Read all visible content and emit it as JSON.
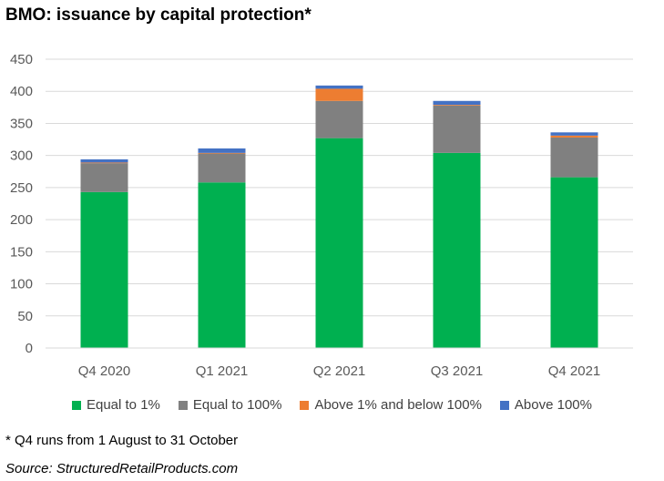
{
  "title": "BMO: issuance by capital protection*",
  "footnote": "* Q4 runs from 1 August to 31 October",
  "source": "Source: StructuredRetailProducts.com",
  "chart_data": {
    "type": "bar",
    "stacked": true,
    "categories": [
      "Q4 2020",
      "Q1 2021",
      "Q2 2021",
      "Q3 2021",
      "Q4 2021"
    ],
    "series": [
      {
        "name": "Equal to 1%",
        "color": "#00B050",
        "values": [
          243,
          258,
          327,
          304,
          266
        ]
      },
      {
        "name": "Equal to 100%",
        "color": "#808080",
        "values": [
          45,
          45,
          58,
          74,
          62
        ]
      },
      {
        "name": "Above 1% and below 100%",
        "color": "#ED7D31",
        "values": [
          1,
          1,
          19,
          1,
          3
        ]
      },
      {
        "name": "Above 100%",
        "color": "#4472C4",
        "values": [
          5,
          7,
          5,
          6,
          5
        ]
      }
    ],
    "ylim": [
      0,
      450
    ],
    "yticks": [
      "0",
      "50",
      "100",
      "150",
      "200",
      "250",
      "300",
      "350",
      "400",
      "450"
    ],
    "grid": true,
    "legend_position": "bottom"
  }
}
